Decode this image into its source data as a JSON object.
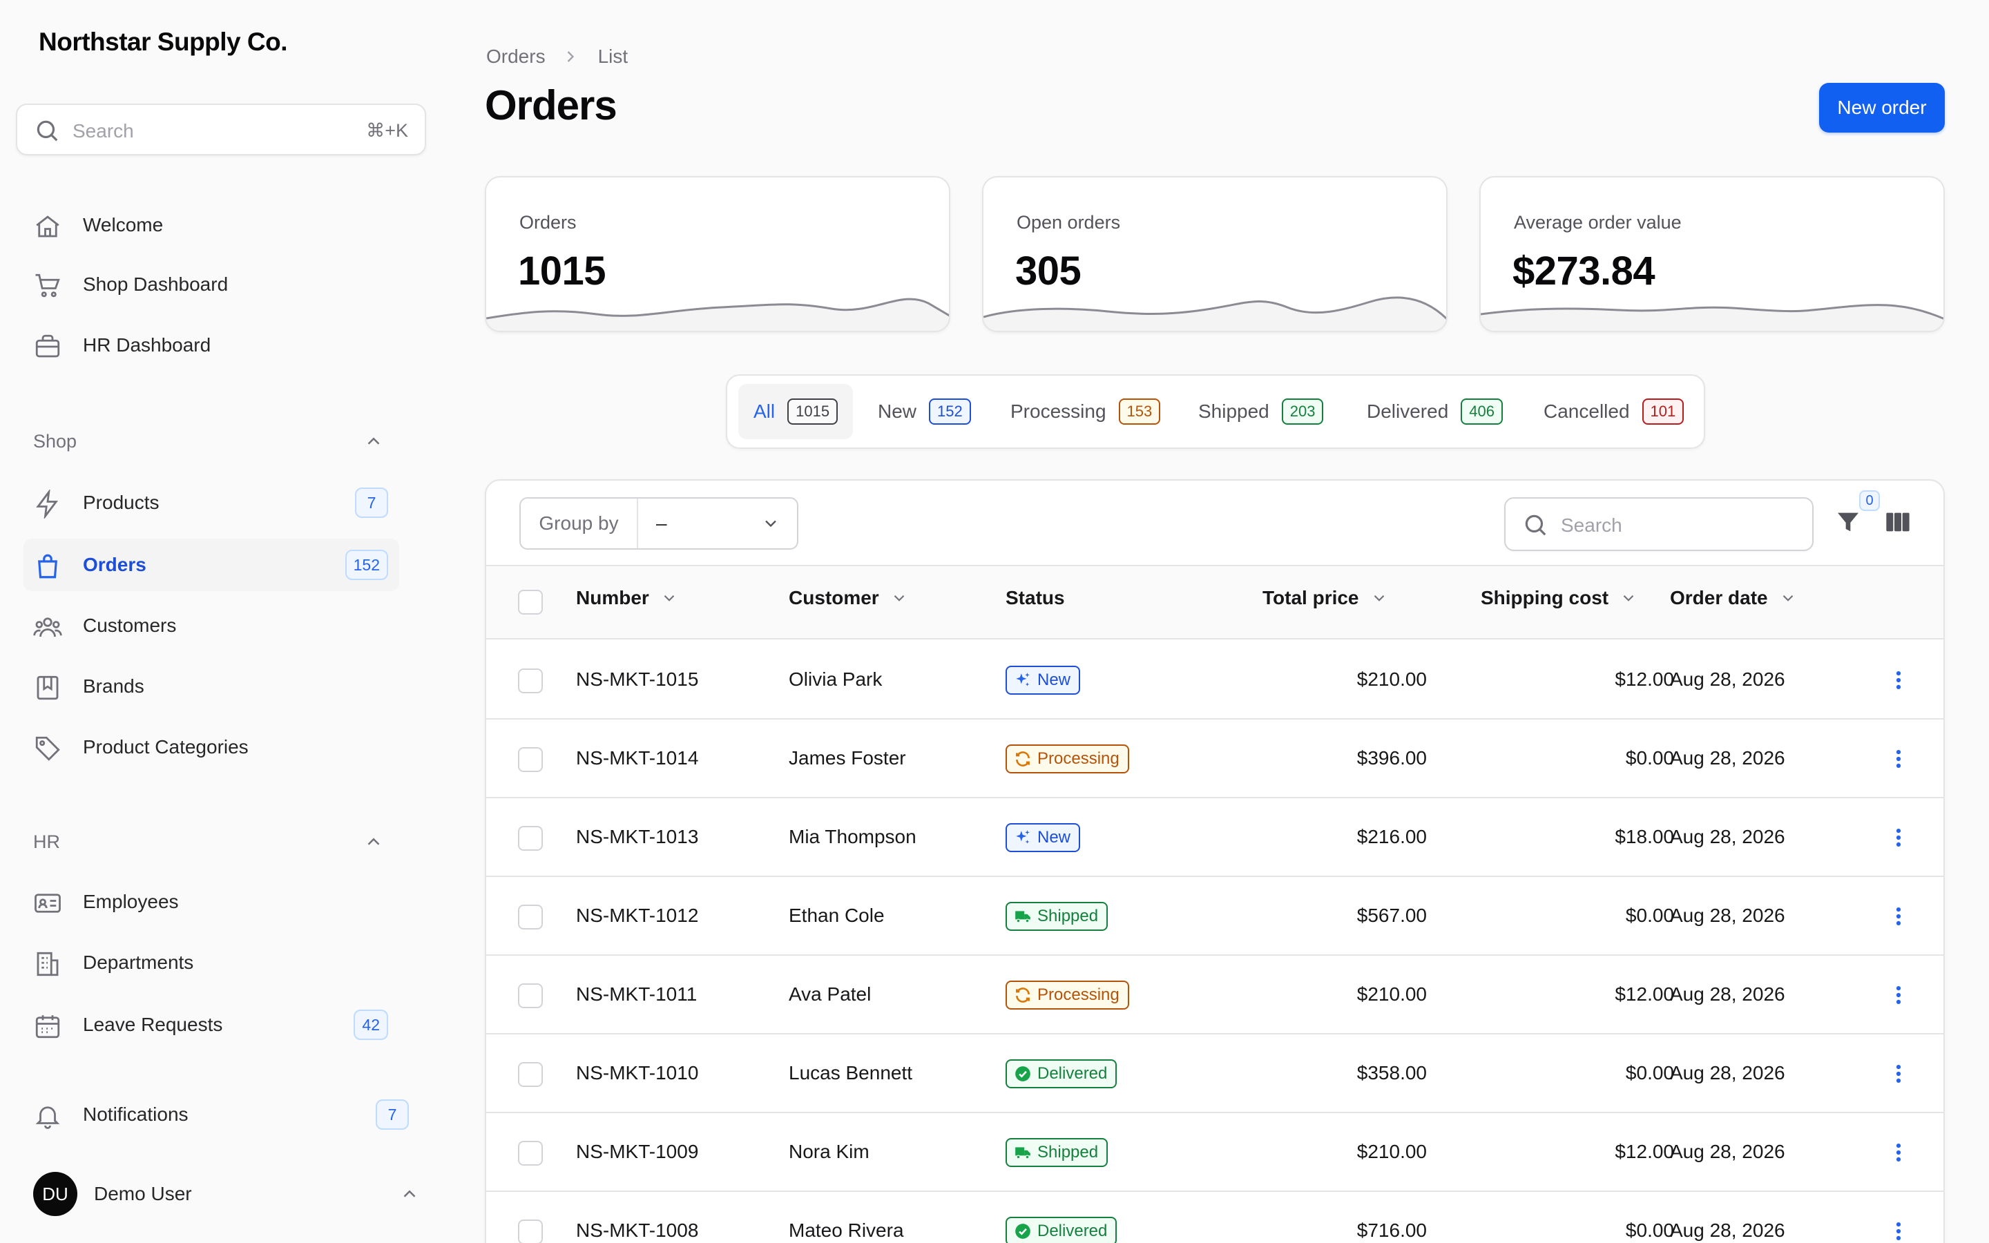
{
  "app": {
    "brand": "Northstar Supply Co."
  },
  "sidebar": {
    "search": {
      "placeholder": "Search",
      "shortcut": "⌘+K"
    },
    "top_items": [
      {
        "label": "Welcome",
        "icon": "home-icon"
      },
      {
        "label": "Shop Dashboard",
        "icon": "cart-icon"
      },
      {
        "label": "HR Dashboard",
        "icon": "briefcase-icon"
      }
    ],
    "groups": [
      {
        "label": "Shop",
        "items": [
          {
            "label": "Products",
            "icon": "bolt-icon",
            "badge": "7"
          },
          {
            "label": "Orders",
            "icon": "shopping-bag-icon",
            "badge": "152",
            "active": true
          },
          {
            "label": "Customers",
            "icon": "users-icon"
          },
          {
            "label": "Brands",
            "icon": "bookmark-icon"
          },
          {
            "label": "Product Categories",
            "icon": "tag-icon"
          }
        ]
      },
      {
        "label": "HR",
        "items": [
          {
            "label": "Employees",
            "icon": "id-card-icon"
          },
          {
            "label": "Departments",
            "icon": "building-icon"
          },
          {
            "label": "Leave Requests",
            "icon": "calendar-icon",
            "badge": "42"
          }
        ]
      }
    ],
    "notifications": {
      "label": "Notifications",
      "badge": "7"
    },
    "user": {
      "initials": "DU",
      "name": "Demo User"
    }
  },
  "header": {
    "breadcrumb": [
      "Orders",
      "List"
    ],
    "title": "Orders",
    "new_button": "New order"
  },
  "stats": [
    {
      "label": "Orders",
      "value": "1015"
    },
    {
      "label": "Open orders",
      "value": "305"
    },
    {
      "label": "Average order value",
      "value": "$273.84"
    }
  ],
  "tabs": [
    {
      "label": "All",
      "count": "1015",
      "color": "gray",
      "active": true
    },
    {
      "label": "New",
      "count": "152",
      "color": "blue"
    },
    {
      "label": "Processing",
      "count": "153",
      "color": "amber"
    },
    {
      "label": "Shipped",
      "count": "203",
      "color": "green"
    },
    {
      "label": "Delivered",
      "count": "406",
      "color": "green"
    },
    {
      "label": "Cancelled",
      "count": "101",
      "color": "red"
    }
  ],
  "toolbar": {
    "group_by_label": "Group by",
    "group_by_value": "–",
    "search_placeholder": "Search",
    "filter_count": "0"
  },
  "table": {
    "columns": [
      "Number",
      "Customer",
      "Status",
      "Total price",
      "Shipping cost",
      "Order date"
    ],
    "rows": [
      {
        "number": "NS-MKT-1015",
        "customer": "Olivia Park",
        "status": "New",
        "total": "$210.00",
        "shipping": "$12.00",
        "date": "Aug 28, 2026"
      },
      {
        "number": "NS-MKT-1014",
        "customer": "James Foster",
        "status": "Processing",
        "total": "$396.00",
        "shipping": "$0.00",
        "date": "Aug 28, 2026"
      },
      {
        "number": "NS-MKT-1013",
        "customer": "Mia Thompson",
        "status": "New",
        "total": "$216.00",
        "shipping": "$18.00",
        "date": "Aug 28, 2026"
      },
      {
        "number": "NS-MKT-1012",
        "customer": "Ethan Cole",
        "status": "Shipped",
        "total": "$567.00",
        "shipping": "$0.00",
        "date": "Aug 28, 2026"
      },
      {
        "number": "NS-MKT-1011",
        "customer": "Ava Patel",
        "status": "Processing",
        "total": "$210.00",
        "shipping": "$12.00",
        "date": "Aug 28, 2026"
      },
      {
        "number": "NS-MKT-1010",
        "customer": "Lucas Bennett",
        "status": "Delivered",
        "total": "$358.00",
        "shipping": "$0.00",
        "date": "Aug 28, 2026"
      },
      {
        "number": "NS-MKT-1009",
        "customer": "Nora Kim",
        "status": "Shipped",
        "total": "$210.00",
        "shipping": "$12.00",
        "date": "Aug 28, 2026"
      },
      {
        "number": "NS-MKT-1008",
        "customer": "Mateo Rivera",
        "status": "Delivered",
        "total": "$716.00",
        "shipping": "$0.00",
        "date": "Aug 28, 2026"
      }
    ]
  },
  "status_colors": {
    "New": "#2563eb",
    "Processing": "#d97706",
    "Shipped": "#16a34a",
    "Delivered": "#16a34a"
  },
  "accent_color": "#1160f1"
}
